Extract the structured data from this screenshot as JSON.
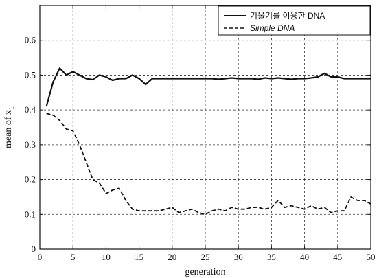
{
  "chart_data": {
    "type": "line",
    "title": "",
    "xlabel": "generation",
    "ylabel": "mean of x",
    "ylabel_subscript": "1",
    "xlim": [
      0,
      50
    ],
    "ylim": [
      0,
      0.7
    ],
    "xticks": [
      "0",
      "5",
      "10",
      "15",
      "20",
      "25",
      "30",
      "35",
      "40",
      "45",
      "50"
    ],
    "yticks": [
      "0",
      "0.1",
      "0.2",
      "0.3",
      "0.4",
      "0.5",
      "0.6"
    ],
    "xtick_values": [
      0,
      5,
      10,
      15,
      20,
      25,
      30,
      35,
      40,
      45,
      50
    ],
    "ytick_values": [
      0,
      0.1,
      0.2,
      0.3,
      0.4,
      0.5,
      0.6
    ],
    "grid": true,
    "legend_position": "top-right",
    "series": [
      {
        "name": "기울기를 이용한 DNA",
        "style": "solid",
        "color": "#111111",
        "x": [
          1,
          2,
          3,
          4,
          5,
          6,
          7,
          8,
          9,
          10,
          11,
          12,
          13,
          14,
          15,
          16,
          17,
          18,
          19,
          20,
          21,
          22,
          23,
          24,
          25,
          26,
          27,
          28,
          29,
          30,
          31,
          32,
          33,
          34,
          35,
          36,
          37,
          38,
          39,
          40,
          41,
          42,
          43,
          44,
          45,
          46,
          47,
          48,
          49,
          50
        ],
        "values": [
          0.41,
          0.48,
          0.52,
          0.5,
          0.51,
          0.5,
          0.49,
          0.487,
          0.5,
          0.495,
          0.485,
          0.49,
          0.49,
          0.5,
          0.49,
          0.473,
          0.49,
          0.49,
          0.49,
          0.49,
          0.49,
          0.49,
          0.49,
          0.49,
          0.49,
          0.49,
          0.488,
          0.49,
          0.492,
          0.49,
          0.49,
          0.49,
          0.488,
          0.492,
          0.49,
          0.492,
          0.49,
          0.488,
          0.49,
          0.49,
          0.492,
          0.495,
          0.505,
          0.495,
          0.495,
          0.49,
          0.49,
          0.49,
          0.49,
          0.49
        ]
      },
      {
        "name": "Simple DNA",
        "style": "dashed",
        "color": "#111111",
        "x": [
          1,
          2,
          3,
          4,
          5,
          6,
          7,
          8,
          9,
          10,
          11,
          12,
          13,
          14,
          15,
          16,
          17,
          18,
          19,
          20,
          21,
          22,
          23,
          24,
          25,
          26,
          27,
          28,
          29,
          30,
          31,
          32,
          33,
          34,
          35,
          36,
          37,
          38,
          39,
          40,
          41,
          42,
          43,
          44,
          45,
          46,
          47,
          48,
          49,
          50
        ],
        "values": [
          0.39,
          0.385,
          0.37,
          0.345,
          0.34,
          0.3,
          0.25,
          0.2,
          0.19,
          0.16,
          0.17,
          0.175,
          0.14,
          0.115,
          0.11,
          0.11,
          0.11,
          0.11,
          0.115,
          0.12,
          0.105,
          0.11,
          0.115,
          0.105,
          0.1,
          0.11,
          0.115,
          0.11,
          0.12,
          0.115,
          0.115,
          0.12,
          0.12,
          0.115,
          0.12,
          0.14,
          0.12,
          0.125,
          0.12,
          0.115,
          0.125,
          0.115,
          0.12,
          0.105,
          0.11,
          0.11,
          0.15,
          0.14,
          0.14,
          0.13
        ]
      }
    ]
  }
}
